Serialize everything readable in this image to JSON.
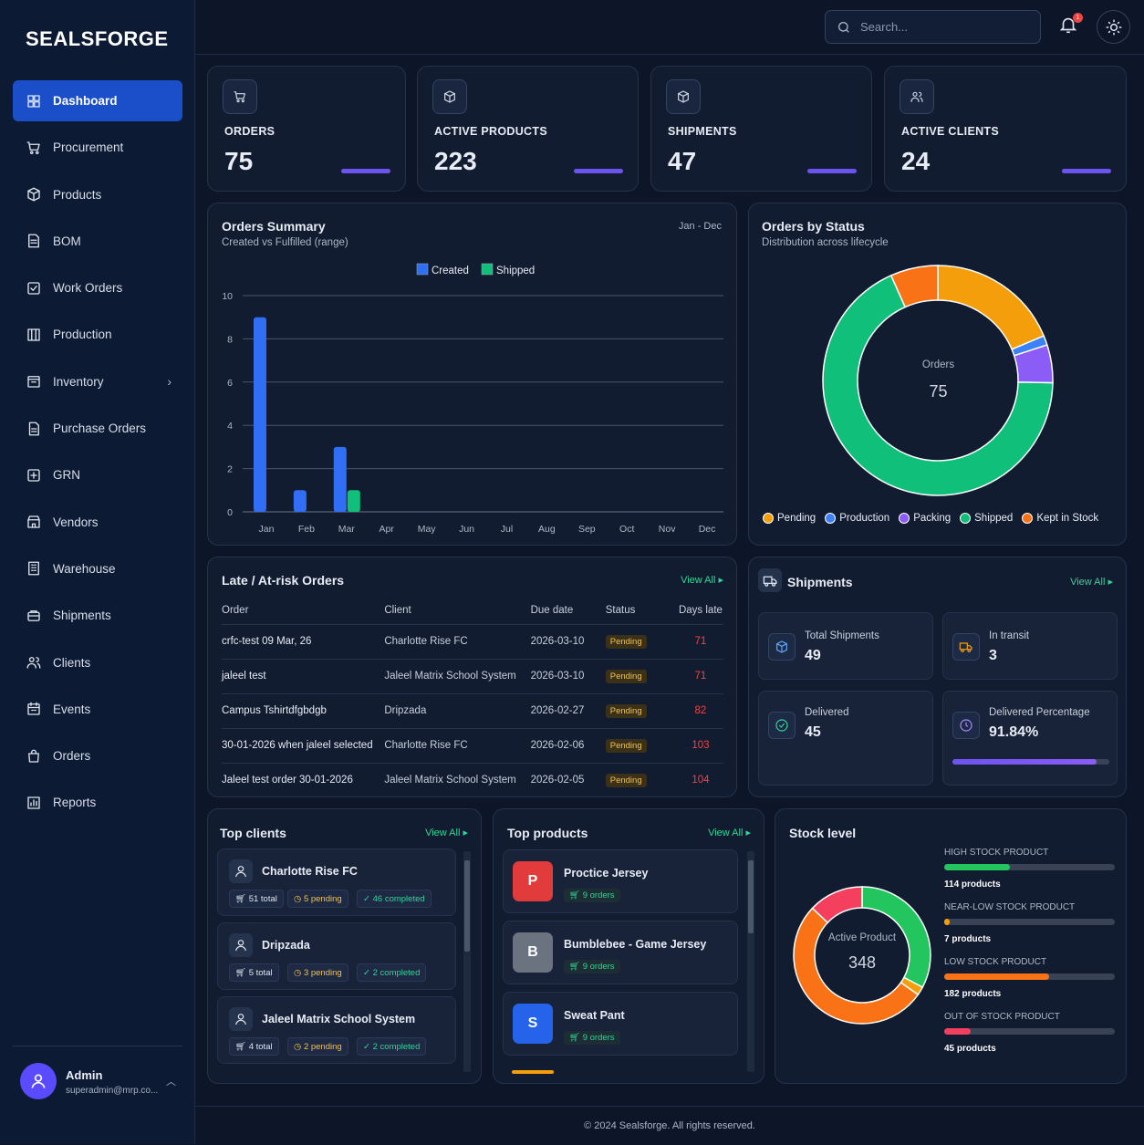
{
  "brand": "SEALSFORGE",
  "nav": [
    {
      "label": "Dashboard",
      "icon": "grid-icon"
    },
    {
      "label": "Procurement",
      "icon": "cart-icon"
    },
    {
      "label": "Products",
      "icon": "box-icon"
    },
    {
      "label": "BOM",
      "icon": "document-icon"
    },
    {
      "label": "Work Orders",
      "icon": "checkbox-icon"
    },
    {
      "label": "Production",
      "icon": "columns-icon"
    },
    {
      "label": "Inventory",
      "icon": "archive-icon"
    },
    {
      "label": "Purchase Orders",
      "icon": "file-icon"
    },
    {
      "label": "GRN",
      "icon": "add-box-icon"
    },
    {
      "label": "Vendors",
      "icon": "store-icon"
    },
    {
      "label": "Warehouse",
      "icon": "building-icon"
    },
    {
      "label": "Shipments",
      "icon": "package-icon"
    },
    {
      "label": "Clients",
      "icon": "users-icon"
    },
    {
      "label": "Events",
      "icon": "calendar-icon"
    },
    {
      "label": "Orders",
      "icon": "bag-icon"
    },
    {
      "label": "Reports",
      "icon": "chart-icon"
    }
  ],
  "user": {
    "name": "Admin",
    "email": "superadmin@mrp.co..."
  },
  "search": {
    "placeholder": "Search..."
  },
  "notifications": {
    "count": "1"
  },
  "stats": [
    {
      "label": "ORDERS",
      "value": "75",
      "icon": "cart-icon"
    },
    {
      "label": "ACTIVE PRODUCTS",
      "value": "223",
      "icon": "box-icon"
    },
    {
      "label": "SHIPMENTS",
      "value": "47",
      "icon": "box-icon"
    },
    {
      "label": "ACTIVE CLIENTS",
      "value": "24",
      "icon": "users-icon"
    }
  ],
  "orders_summary": {
    "title": "Orders Summary",
    "subtitle": "Created vs Fulfilled (range)",
    "range": "Jan - Dec"
  },
  "orders_by_status": {
    "title": "Orders by Status",
    "subtitle": "Distribution across lifecycle",
    "center_label": "Orders",
    "center_value": "75"
  },
  "late": {
    "title": "Late / At-risk Orders",
    "view_all": "View All",
    "headers": [
      "Order",
      "Client",
      "Due date",
      "Status",
      "Days late"
    ],
    "rows": [
      [
        "crfc-test 09 Mar, 26",
        "Charlotte Rise FC",
        "2026-03-10",
        "Pending",
        "71"
      ],
      [
        "jaleel test",
        "Jaleel Matrix School System",
        "2026-03-10",
        "Pending",
        "71"
      ],
      [
        "Campus Tshirtdfgbdgb",
        "Dripzada",
        "2026-02-27",
        "Pending",
        "82"
      ],
      [
        "30-01-2026 when jaleel selected",
        "Charlotte Rise FC",
        "2026-02-06",
        "Pending",
        "103"
      ],
      [
        "Jaleel test order 30-01-2026",
        "Jaleel Matrix School System",
        "2026-02-05",
        "Pending",
        "104"
      ]
    ]
  },
  "shipments": {
    "title": "Shipments",
    "view_all": "View All",
    "total_label": "Total Shipments",
    "total": "49",
    "transit_label": "In transit",
    "transit": "3",
    "delivered_label": "Delivered",
    "delivered": "45",
    "pct_label": "Delivered Percentage",
    "pct": "91.84%",
    "pct_fraction": 0.9184
  },
  "top_clients": {
    "title": "Top clients",
    "view_all": "View All",
    "items": [
      {
        "name": "Charlotte Rise FC",
        "total": "51 total",
        "pending": "5 pending",
        "completed": "46 completed"
      },
      {
        "name": "Dripzada",
        "total": "5 total",
        "pending": "3 pending",
        "completed": "2 completed"
      },
      {
        "name": "Jaleel Matrix School System",
        "total": "4 total",
        "pending": "2 pending",
        "completed": "2 completed"
      }
    ]
  },
  "top_products": {
    "title": "Top products",
    "view_all": "View All",
    "items": [
      {
        "letter": "P",
        "name": "Proctice Jersey",
        "orders": "9 orders",
        "color": "#e23b3b"
      },
      {
        "letter": "B",
        "name": "Bumblebee - Game Jersey",
        "orders": "9 orders",
        "color": "#6b7280"
      },
      {
        "letter": "S",
        "name": "Sweat Pant",
        "orders": "9 orders",
        "color": "#2563eb"
      }
    ]
  },
  "stock": {
    "title": "Stock level",
    "center_label": "Active Product",
    "center_value": "348",
    "levels": [
      {
        "label": "HIGH STOCK PRODUCT",
        "count": "114 products",
        "value": 114,
        "color": "#22c55e"
      },
      {
        "label": "NEAR-LOW STOCK PRODUCT",
        "count": "7 products",
        "value": 7,
        "color": "#f59e0b"
      },
      {
        "label": "LOW STOCK PRODUCT",
        "count": "182 products",
        "value": 182,
        "color": "#f97316"
      },
      {
        "label": "OUT OF STOCK PRODUCT",
        "count": "45 products",
        "value": 45,
        "color": "#f43f5e"
      }
    ]
  },
  "footer": "© 2024 Sealsforge. All rights reserved.",
  "chart_data": [
    {
      "type": "bar",
      "title": "Orders Summary",
      "categories": [
        "Jan",
        "Feb",
        "Mar",
        "Apr",
        "May",
        "Jun",
        "Jul",
        "Aug",
        "Sep",
        "Oct",
        "Nov",
        "Dec"
      ],
      "series": [
        {
          "name": "Created",
          "values": [
            9,
            1,
            3,
            0,
            0,
            0,
            0,
            0,
            0,
            0,
            0,
            0
          ],
          "color": "#2f6ef5"
        },
        {
          "name": "Shipped",
          "values": [
            0,
            0,
            1,
            0,
            0,
            0,
            0,
            0,
            0,
            0,
            0,
            0
          ],
          "color": "#10c07a"
        }
      ],
      "ylim": [
        0,
        10
      ],
      "yticks": [
        0,
        2,
        4,
        6,
        8,
        10
      ],
      "grid": true,
      "legend": "top"
    },
    {
      "type": "pie",
      "title": "Orders by Status",
      "categories": [
        "Pending",
        "Production",
        "Packing",
        "Shipped",
        "Kept in Stock"
      ],
      "values": [
        14,
        1,
        4,
        51,
        5
      ],
      "colors": [
        "#f59e0b",
        "#3b82f6",
        "#8b5cf6",
        "#10c07a",
        "#f97316"
      ],
      "legend": "bottom"
    },
    {
      "type": "pie",
      "title": "Stock level",
      "categories": [
        "HIGH STOCK PRODUCT",
        "NEAR-LOW STOCK PRODUCT",
        "LOW STOCK PRODUCT",
        "OUT OF STOCK PRODUCT"
      ],
      "values": [
        114,
        7,
        182,
        45
      ],
      "colors": [
        "#22c55e",
        "#f59e0b",
        "#f97316",
        "#f43f5e"
      ]
    }
  ]
}
